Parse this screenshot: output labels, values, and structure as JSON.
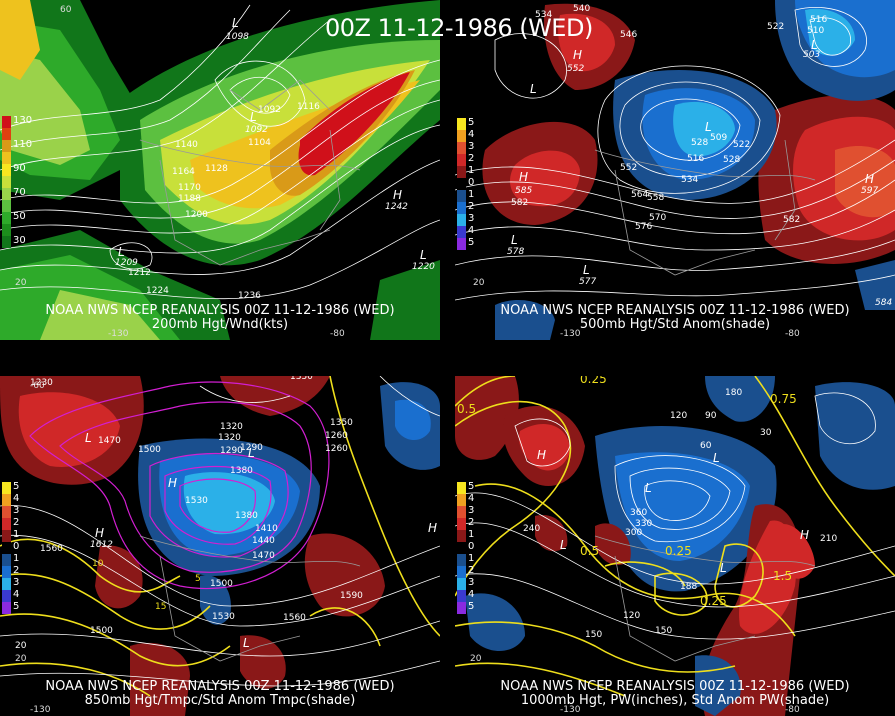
{
  "title": "00Z 11-12-1986 (WED)",
  "panels": [
    {
      "line1": "NOAA NWS NCEP REANALYSIS 00Z 11-12-1986 (WED)",
      "line2": "200mb Hgt/Wnd(kts)",
      "legend": [
        {
          "label": "130",
          "color": "#d0101a"
        },
        {
          "label": "",
          "color": "#e04010"
        },
        {
          "label": "110",
          "color": "#d99a18"
        },
        {
          "label": "",
          "color": "#eec21e"
        },
        {
          "label": "90",
          "color": "#f7e620"
        },
        {
          "label": "",
          "color": "#c8e03a"
        },
        {
          "label": "70",
          "color": "#9ad24a"
        },
        {
          "label": "",
          "color": "#5cc040"
        },
        {
          "label": "50",
          "color": "#2eaa2a"
        },
        {
          "label": "",
          "color": "#1c8e1c"
        },
        {
          "label": "30",
          "color": "#11761a"
        }
      ],
      "contour_labels": [
        "1092",
        "1116",
        "1104",
        "1128",
        "1140",
        "1164",
        "1170",
        "1188",
        "1200",
        "1212",
        "1224",
        "1236",
        "1242",
        "1209",
        "1220",
        "1098",
        "1092"
      ]
    },
    {
      "line1": "NOAA NWS NCEP REANALYSIS 00Z 11-12-1986 (WED)",
      "line2": "500mb Hgt/Std Anom(shade)",
      "legend": [
        {
          "label": "5",
          "color": "#f7e620"
        },
        {
          "label": "4",
          "color": "#f0a020"
        },
        {
          "label": "3",
          "color": "#e05030"
        },
        {
          "label": "2",
          "color": "#d02828"
        },
        {
          "label": "1",
          "color": "#8a1818"
        },
        {
          "label": "0",
          "color": "#000000"
        },
        {
          "label": "1",
          "color": "#1a4f8e"
        },
        {
          "label": "2",
          "color": "#1a6fcf"
        },
        {
          "label": "3",
          "color": "#2bb0e8"
        },
        {
          "label": "4",
          "color": "#3a3ad0"
        },
        {
          "label": "5",
          "color": "#8a2ae0"
        }
      ],
      "contour_labels": [
        "540",
        "546",
        "552",
        "534",
        "510",
        "516",
        "522",
        "528",
        "503",
        "509",
        "516",
        "522",
        "528",
        "534",
        "552",
        "558",
        "564",
        "570",
        "576",
        "582",
        "582",
        "585",
        "578",
        "577",
        "597",
        "584"
      ]
    },
    {
      "line1": "NOAA NWS NCEP REANALYSIS 00Z 11-12-1986 (WED)",
      "line2": "850mb Hgt/Tmpc/Std Anom Tmpc(shade)",
      "legend": [
        {
          "label": "5",
          "color": "#f7e620"
        },
        {
          "label": "4",
          "color": "#f0a020"
        },
        {
          "label": "3",
          "color": "#e05030"
        },
        {
          "label": "2",
          "color": "#d02828"
        },
        {
          "label": "1",
          "color": "#8a1818"
        },
        {
          "label": "0",
          "color": "#000000"
        },
        {
          "label": "1",
          "color": "#1a4f8e"
        },
        {
          "label": "2",
          "color": "#1a6fcf"
        },
        {
          "label": "3",
          "color": "#2bb0e8"
        },
        {
          "label": "4",
          "color": "#3a3ad0"
        },
        {
          "label": "5",
          "color": "#8a2ae0"
        }
      ],
      "contour_labels": [
        "1350",
        "1320",
        "1290",
        "1260",
        "1230",
        "1470",
        "1500",
        "1530",
        "1380",
        "1410",
        "1440",
        "1470",
        "1500",
        "1530",
        "1560",
        "1590",
        "1560",
        "1500",
        "1612",
        "1380",
        "1350",
        "1320",
        "1290",
        "1260",
        "10",
        "15",
        "5",
        "20"
      ]
    },
    {
      "line1": "NOAA NWS NCEP REANALYSIS 00Z 11-12-1986 (WED)",
      "line2": "1000mb Hgt, PW(inches), Std Anom PW(shade)",
      "legend": [
        {
          "label": "5",
          "color": "#f7e620"
        },
        {
          "label": "4",
          "color": "#f0a020"
        },
        {
          "label": "3",
          "color": "#e05030"
        },
        {
          "label": "2",
          "color": "#d02828"
        },
        {
          "label": "1",
          "color": "#8a1818"
        },
        {
          "label": "0",
          "color": "#000000"
        },
        {
          "label": "1",
          "color": "#1a4f8e"
        },
        {
          "label": "2",
          "color": "#1a6fcf"
        },
        {
          "label": "3",
          "color": "#2bb0e8"
        },
        {
          "label": "4",
          "color": "#3a3ad0"
        },
        {
          "label": "5",
          "color": "#8a2ae0"
        }
      ],
      "contour_labels": [
        "0.25",
        "0.5",
        "0.25",
        "0.5",
        "0.25",
        "0.75",
        "1.5",
        "120",
        "150",
        "90",
        "60",
        "30",
        "210",
        "240",
        "188",
        "360",
        "330",
        "300",
        "150",
        "120",
        "180"
      ]
    }
  ]
}
